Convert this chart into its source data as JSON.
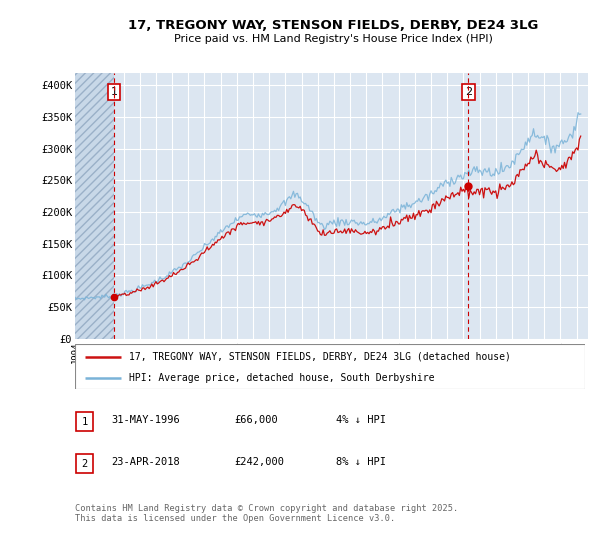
{
  "title_line1": "17, TREGONY WAY, STENSON FIELDS, DERBY, DE24 3LG",
  "title_line2": "Price paid vs. HM Land Registry's House Price Index (HPI)",
  "ylabel_ticks": [
    "£0",
    "£50K",
    "£100K",
    "£150K",
    "£200K",
    "£250K",
    "£300K",
    "£350K",
    "£400K"
  ],
  "ytick_values": [
    0,
    50000,
    100000,
    150000,
    200000,
    250000,
    300000,
    350000,
    400000
  ],
  "ylim": [
    0,
    420000
  ],
  "xlim_start": 1994.0,
  "xlim_end": 2025.7,
  "background_color": "#dce6f1",
  "grid_color": "#ffffff",
  "sale1_date": 1996.42,
  "sale1_price": 66000,
  "sale2_date": 2018.3,
  "sale2_price": 242000,
  "legend_label1": "17, TREGONY WAY, STENSON FIELDS, DERBY, DE24 3LG (detached house)",
  "legend_label2": "HPI: Average price, detached house, South Derbyshire",
  "footer": "Contains HM Land Registry data © Crown copyright and database right 2025.\nThis data is licensed under the Open Government Licence v3.0."
}
